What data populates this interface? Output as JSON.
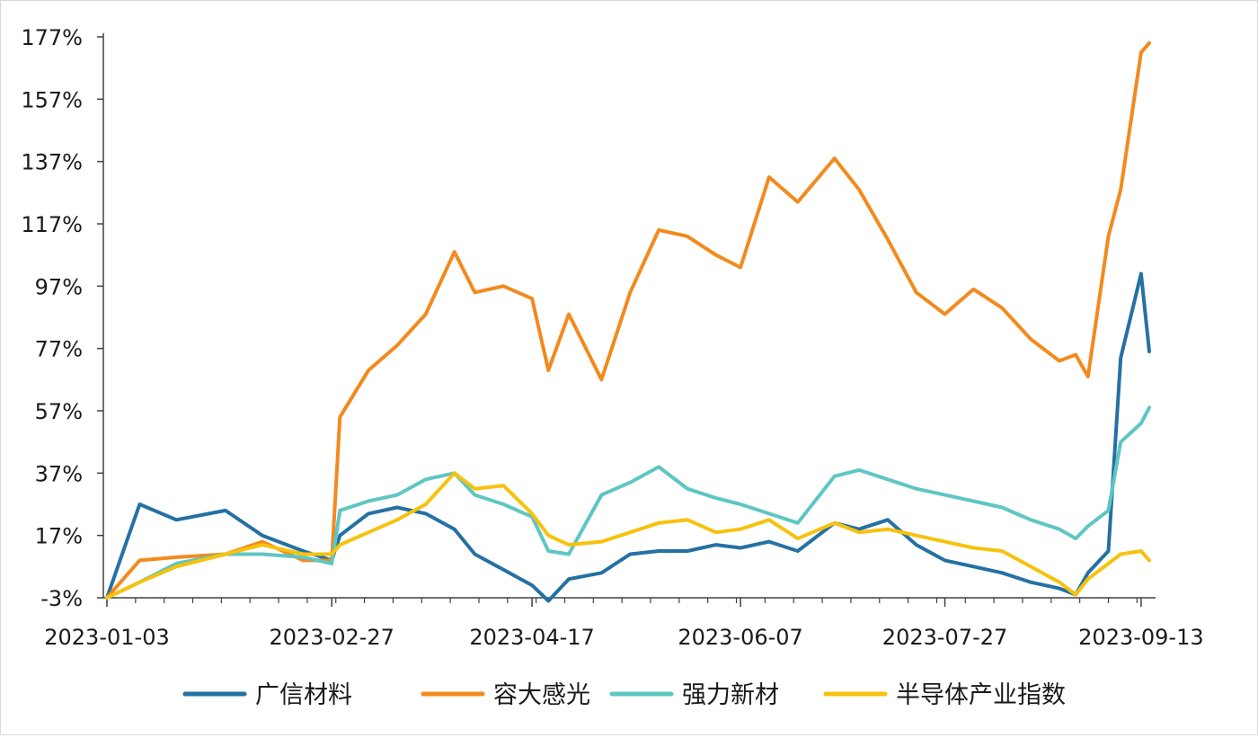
{
  "chart_data": {
    "type": "line",
    "title": "",
    "xlabel": "",
    "ylabel": "",
    "x_tick_labels": [
      "2023-01-03",
      "2023-02-27",
      "2023-04-17",
      "2023-06-07",
      "2023-07-27",
      "2023-09-13"
    ],
    "y_tick_labels": [
      "-3%",
      "17%",
      "37%",
      "57%",
      "77%",
      "97%",
      "117%",
      "137%",
      "157%",
      "177%"
    ],
    "y_ticks": [
      -3,
      17,
      37,
      57,
      77,
      97,
      117,
      137,
      157,
      177
    ],
    "ylim": [
      -3,
      177
    ],
    "legend_position": "bottom",
    "grid": false,
    "x": [
      "2023-01-03",
      "2023-01-11",
      "2023-01-20",
      "2023-02-01",
      "2023-02-10",
      "2023-02-20",
      "2023-02-27",
      "2023-03-01",
      "2023-03-08",
      "2023-03-15",
      "2023-03-22",
      "2023-03-29",
      "2023-04-03",
      "2023-04-10",
      "2023-04-17",
      "2023-04-21",
      "2023-04-26",
      "2023-05-04",
      "2023-05-11",
      "2023-05-18",
      "2023-05-25",
      "2023-06-01",
      "2023-06-07",
      "2023-06-14",
      "2023-06-21",
      "2023-06-30",
      "2023-07-06",
      "2023-07-13",
      "2023-07-20",
      "2023-07-27",
      "2023-08-03",
      "2023-08-10",
      "2023-08-17",
      "2023-08-24",
      "2023-08-28",
      "2023-08-31",
      "2023-09-05",
      "2023-09-08",
      "2023-09-13",
      "2023-09-15"
    ],
    "series": [
      {
        "name": "广信材料",
        "color": "#2471a3",
        "values": [
          -3,
          27,
          22,
          25,
          17,
          12,
          9,
          17,
          24,
          26,
          24,
          19,
          11,
          6,
          1,
          -4,
          3,
          5,
          11,
          12,
          12,
          14,
          13,
          15,
          12,
          21,
          19,
          22,
          14,
          9,
          7,
          5,
          2,
          0,
          -2,
          5,
          12,
          74,
          101,
          76
        ]
      },
      {
        "name": "容大感光",
        "color": "#f28a1e",
        "values": [
          -3,
          9,
          10,
          11,
          15,
          9,
          9,
          55,
          70,
          78,
          88,
          108,
          95,
          97,
          93,
          70,
          88,
          67,
          95,
          115,
          113,
          107,
          103,
          132,
          124,
          138,
          128,
          112,
          95,
          88,
          96,
          90,
          80,
          73,
          75,
          68,
          113,
          128,
          172,
          175
        ]
      },
      {
        "name": "强力新材",
        "color": "#5ec6c3",
        "values": [
          -3,
          2,
          8,
          11,
          11,
          10,
          8,
          25,
          28,
          30,
          35,
          37,
          30,
          27,
          23,
          12,
          11,
          30,
          34,
          39,
          32,
          29,
          27,
          24,
          21,
          36,
          38,
          35,
          32,
          30,
          28,
          26,
          22,
          19,
          16,
          20,
          25,
          47,
          53,
          58
        ]
      },
      {
        "name": "半导体产业指数",
        "color": "#f6c20e",
        "values": [
          -3,
          2,
          7,
          11,
          14,
          11,
          11,
          14,
          18,
          22,
          27,
          37,
          32,
          33,
          24,
          17,
          14,
          15,
          18,
          21,
          22,
          18,
          19,
          22,
          16,
          21,
          18,
          19,
          17,
          15,
          13,
          12,
          7,
          2,
          -2,
          3,
          8,
          11,
          12,
          9
        ]
      }
    ]
  }
}
